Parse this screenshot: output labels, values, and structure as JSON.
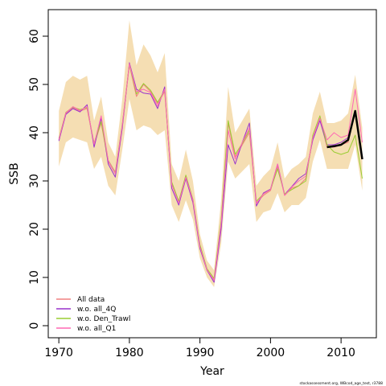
{
  "chart_data": {
    "type": "line",
    "title": "",
    "xlabel": "Year",
    "ylabel": "SSB",
    "xlim": [
      1968.5,
      2015
    ],
    "ylim": [
      -2.5,
      65.5
    ],
    "xticks": [
      1970,
      1980,
      1990,
      2000,
      2010
    ],
    "yticks": [
      0,
      10,
      20,
      30,
      40,
      50,
      60
    ],
    "legend_position": "bottom-left",
    "grid": false,
    "confidence_band": {
      "color": "#f5deb3",
      "x": [
        1970,
        1971,
        1972,
        1973,
        1974,
        1975,
        1976,
        1977,
        1978,
        1979,
        1980,
        1981,
        1982,
        1983,
        1984,
        1985,
        1986,
        1987,
        1988,
        1989,
        1990,
        1991,
        1992,
        1993,
        1994,
        1995,
        1996,
        1997,
        1998,
        1999,
        2000,
        2001,
        2002,
        2003,
        2004,
        2005,
        2006,
        2007,
        2008,
        2009,
        2010,
        2011,
        2012,
        2013
      ],
      "upper": [
        44.5,
        50.5,
        51.8,
        51.0,
        51.8,
        42.5,
        47.5,
        38.0,
        35.0,
        47.0,
        63.3,
        54.0,
        58.3,
        56.0,
        52.5,
        56.5,
        33.5,
        30.0,
        36.5,
        30.0,
        19.0,
        13.5,
        11.5,
        26.0,
        49.5,
        40.0,
        42.5,
        45.0,
        29.0,
        31.0,
        32.5,
        38.0,
        30.5,
        32.5,
        33.5,
        35.0,
        44.0,
        48.5,
        42.0,
        42.0,
        42.5,
        44.0,
        52.0,
        41.0
      ],
      "lower": [
        33.0,
        38.0,
        39.0,
        38.5,
        38.0,
        32.5,
        35.0,
        29.0,
        27.0,
        36.5,
        47.0,
        40.5,
        41.5,
        41.0,
        39.5,
        40.5,
        25.0,
        21.5,
        26.0,
        22.0,
        14.0,
        10.0,
        8.0,
        17.0,
        34.0,
        30.5,
        32.0,
        33.5,
        21.5,
        23.5,
        24.0,
        27.5,
        23.5,
        25.0,
        25.0,
        26.5,
        34.0,
        38.5,
        32.5,
        32.5,
        32.5,
        32.5,
        37.5,
        28.0
      ]
    },
    "series": [
      {
        "name": "All data",
        "color": "#f08080",
        "width": 1,
        "x": [
          1970,
          1971,
          1972,
          1973,
          1974,
          1975,
          1976,
          1977,
          1978,
          1979,
          1980,
          1981,
          1982,
          1983,
          1984,
          1985,
          1986,
          1987,
          1988,
          1989,
          1990,
          1991,
          1992,
          1993,
          1994,
          1995,
          1996,
          1997,
          1998,
          1999,
          2000,
          2001,
          2002,
          2003,
          2004,
          2005,
          2006,
          2007,
          2008,
          2009,
          2010,
          2011,
          2012,
          2013
        ],
        "values": [
          38.5,
          44.0,
          45.2,
          44.5,
          45.0,
          37.5,
          42.0,
          34.0,
          31.5,
          41.5,
          54.0,
          47.5,
          50.0,
          48.5,
          46.0,
          48.5,
          29.5,
          25.5,
          31.0,
          26.0,
          16.5,
          11.5,
          9.5,
          21.5,
          42.0,
          35.0,
          37.5,
          40.0,
          25.5,
          27.0,
          28.0,
          33.0,
          27.0,
          28.5,
          29.0,
          30.5,
          39.0,
          43.0,
          37.0,
          37.0,
          37.5,
          38.0,
          44.5,
          34.5
        ]
      },
      {
        "name": "w.o. all_4Q",
        "color": "#9932cc",
        "width": 1,
        "x": [
          1970,
          1971,
          1972,
          1973,
          1974,
          1975,
          1976,
          1977,
          1978,
          1979,
          1980,
          1981,
          1982,
          1983,
          1984,
          1985,
          1986,
          1987,
          1988,
          1989,
          1990,
          1991,
          1992,
          1993,
          1994,
          1995,
          1996,
          1997,
          1998,
          1999,
          2000,
          2001,
          2002,
          2003,
          2004,
          2005,
          2006,
          2007,
          2008,
          2009,
          2010,
          2011,
          2012,
          2013
        ],
        "values": [
          38.3,
          43.8,
          45.0,
          44.3,
          45.8,
          37.0,
          43.0,
          33.5,
          30.8,
          41.0,
          54.5,
          49.0,
          48.2,
          48.0,
          45.0,
          49.5,
          28.5,
          25.0,
          30.5,
          25.5,
          16.0,
          11.5,
          9.0,
          20.0,
          37.5,
          33.5,
          38.0,
          42.0,
          24.8,
          27.5,
          28.3,
          33.5,
          27.2,
          28.8,
          30.5,
          31.5,
          38.5,
          42.5,
          37.5,
          37.5,
          38.0,
          39.0,
          44.0,
          34.5
        ]
      },
      {
        "name": "w.o. Den_Trawl",
        "color": "#9acd32",
        "width": 1,
        "x": [
          1970,
          1971,
          1972,
          1973,
          1974,
          1975,
          1976,
          1977,
          1978,
          1979,
          1980,
          1981,
          1982,
          1983,
          1984,
          1985,
          1986,
          1987,
          1988,
          1989,
          1990,
          1991,
          1992,
          1993,
          1994,
          1995,
          1996,
          1997,
          1998,
          1999,
          2000,
          2001,
          2002,
          2003,
          2004,
          2005,
          2006,
          2007,
          2008,
          2009,
          2010,
          2011,
          2012,
          2013
        ],
        "values": [
          38.8,
          44.2,
          45.3,
          44.8,
          45.2,
          37.8,
          42.3,
          34.3,
          31.8,
          41.8,
          54.2,
          48.0,
          50.2,
          48.8,
          46.3,
          48.8,
          29.8,
          25.8,
          31.2,
          26.2,
          16.8,
          11.8,
          9.8,
          21.8,
          42.5,
          35.5,
          37.8,
          40.5,
          25.8,
          27.3,
          28.2,
          32.5,
          27.3,
          28.2,
          29.0,
          30.0,
          39.5,
          43.5,
          37.5,
          36.0,
          35.5,
          36.0,
          39.5,
          30.5
        ]
      },
      {
        "name": "w.o. all_Q1",
        "color": "#ff69b4",
        "width": 1,
        "x": [
          1970,
          1971,
          1972,
          1973,
          1974,
          1975,
          1976,
          1977,
          1978,
          1979,
          1980,
          1981,
          1982,
          1983,
          1984,
          1985,
          1986,
          1987,
          1988,
          1989,
          1990,
          1991,
          1992,
          1993,
          1994,
          1995,
          1996,
          1997,
          1998,
          1999,
          2000,
          2001,
          2002,
          2003,
          2004,
          2005,
          2006,
          2007,
          2008,
          2009,
          2010,
          2011,
          2012,
          2013
        ],
        "values": [
          38.6,
          44.1,
          45.4,
          44.6,
          45.4,
          37.6,
          43.5,
          34.2,
          31.6,
          41.6,
          54.3,
          48.5,
          49.0,
          48.3,
          45.5,
          49.0,
          29.3,
          25.4,
          30.8,
          26.0,
          16.4,
          11.6,
          9.4,
          21.2,
          40.5,
          34.5,
          38.0,
          41.0,
          25.3,
          27.3,
          28.2,
          33.5,
          27.0,
          28.7,
          30.0,
          31.0,
          39.0,
          43.0,
          38.5,
          40.0,
          39.0,
          39.5,
          49.0,
          38.0
        ]
      },
      {
        "name": "",
        "color": "#000000",
        "width": 2.5,
        "x": [
          2008,
          2009,
          2010,
          2011,
          2012,
          2013
        ],
        "values": [
          37.0,
          37.2,
          37.5,
          38.5,
          44.5,
          34.5
        ]
      }
    ],
    "footnote": "stockassessment.org, WBcod_age_test, r3788"
  }
}
